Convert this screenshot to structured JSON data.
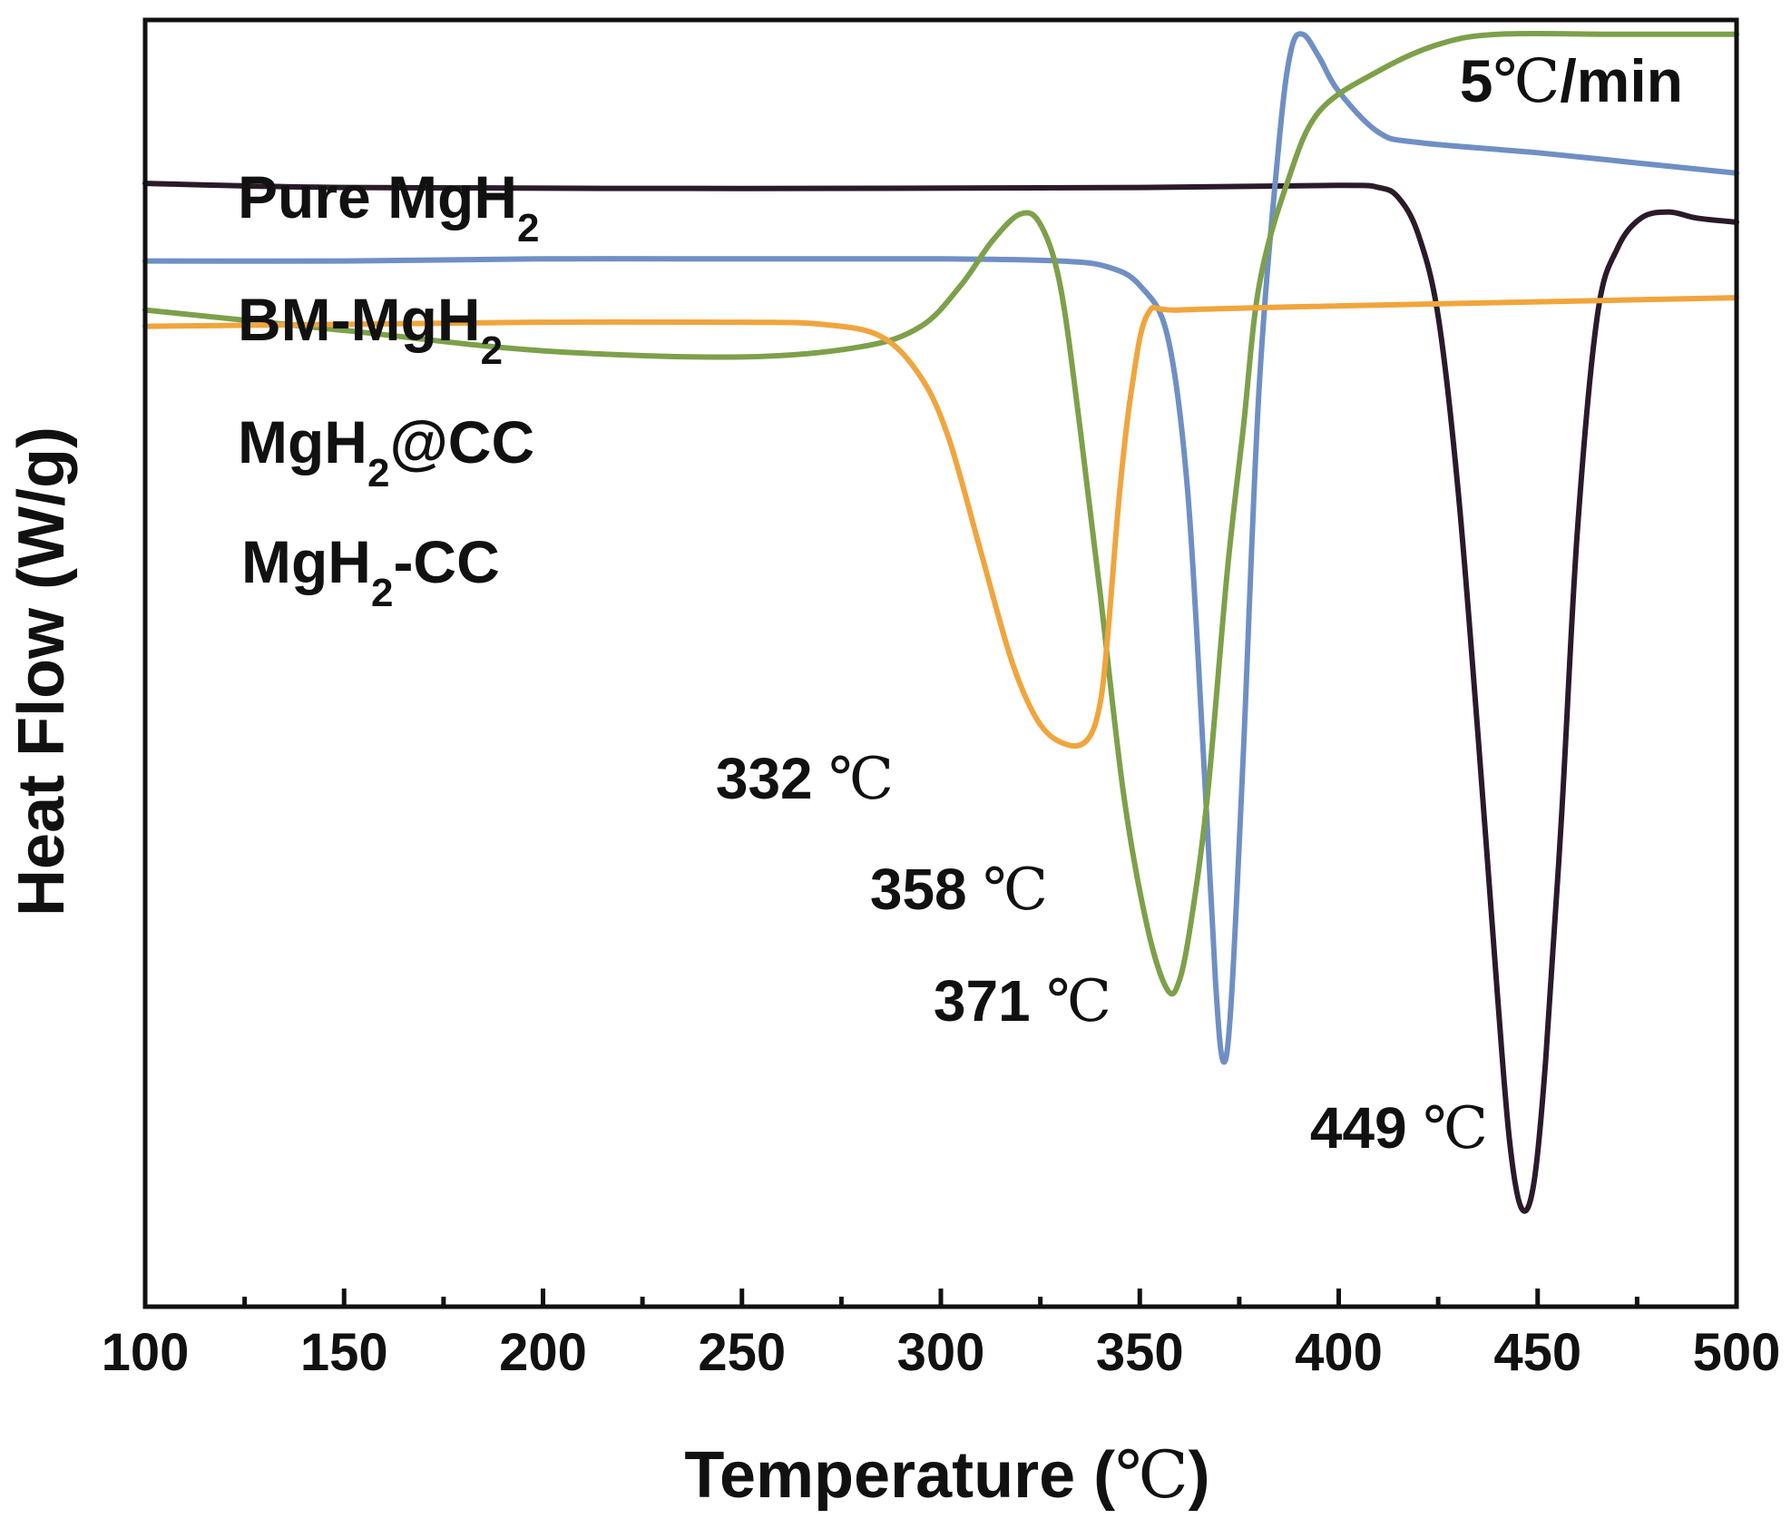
{
  "chart_data": {
    "type": "line",
    "title": "",
    "annotation": "5℃/min",
    "xlabel": "Temperature (℃)",
    "ylabel": "Heat Flow (W/g)",
    "xlim": [
      100,
      500
    ],
    "ylim": [
      -45,
      18
    ],
    "x_ticks": [
      100,
      150,
      200,
      250,
      300,
      350,
      400,
      450,
      500
    ],
    "x_tick_labels": [
      "100",
      "150",
      "200",
      "250",
      "300",
      "350",
      "400",
      "450",
      "500"
    ],
    "y_ticks_shown": false,
    "series": [
      {
        "name": "Pure MgH2",
        "label_main": "Pure MgH",
        "label_sub": "2",
        "label_tail": "",
        "color": "#2a1a2a",
        "peak_label": {
          "value": "449",
          "unit": "℃"
        },
        "points": [
          [
            100,
            10
          ],
          [
            150,
            9.8
          ],
          [
            250,
            9.75
          ],
          [
            350,
            9.8
          ],
          [
            400,
            9.9
          ],
          [
            410,
            9.8
          ],
          [
            415,
            9.3
          ],
          [
            420,
            7.5
          ],
          [
            425,
            3.5
          ],
          [
            430,
            -5
          ],
          [
            435,
            -17
          ],
          [
            440,
            -30
          ],
          [
            443,
            -37
          ],
          [
            446,
            -40.2
          ],
          [
            449,
            -39
          ],
          [
            452,
            -33
          ],
          [
            456,
            -21
          ],
          [
            460,
            -7
          ],
          [
            465,
            3.5
          ],
          [
            470,
            6.8
          ],
          [
            476,
            8.3
          ],
          [
            483,
            8.6
          ],
          [
            490,
            8.3
          ],
          [
            500,
            8.1
          ]
        ]
      },
      {
        "name": "BM-MgH2",
        "label_main": "BM-MgH",
        "label_sub": "2",
        "label_tail": "",
        "color": "#6f8fc4",
        "peak_label": {
          "value": "371",
          "unit": "℃"
        },
        "points": [
          [
            100,
            6.2
          ],
          [
            150,
            6.2
          ],
          [
            200,
            6.3
          ],
          [
            250,
            6.3
          ],
          [
            300,
            6.3
          ],
          [
            330,
            6.2
          ],
          [
            342,
            5.9
          ],
          [
            350,
            5
          ],
          [
            357,
            2.5
          ],
          [
            362,
            -5
          ],
          [
            366,
            -18
          ],
          [
            369,
            -29
          ],
          [
            371,
            -33
          ],
          [
            373,
            -30
          ],
          [
            376,
            -18
          ],
          [
            380,
            0
          ],
          [
            385,
            12
          ],
          [
            388,
            16.5
          ],
          [
            391,
            17.3
          ],
          [
            395,
            16.2
          ],
          [
            400,
            14.5
          ],
          [
            410,
            12.5
          ],
          [
            420,
            12
          ],
          [
            450,
            11.5
          ],
          [
            475,
            11
          ],
          [
            500,
            10.5
          ]
        ]
      },
      {
        "name": "MgH2@CC",
        "label_main": "MgH",
        "label_sub": "2",
        "label_tail": "@CC",
        "color": "#7da04a",
        "peak_label": {
          "value": "358",
          "unit": "℃"
        },
        "points": [
          [
            100,
            3.8
          ],
          [
            150,
            2.8
          ],
          [
            200,
            1.8
          ],
          [
            250,
            1.5
          ],
          [
            280,
            2
          ],
          [
            295,
            3
          ],
          [
            305,
            5
          ],
          [
            313,
            7.2
          ],
          [
            320,
            8.5
          ],
          [
            325,
            8
          ],
          [
            330,
            5
          ],
          [
            335,
            -2
          ],
          [
            340,
            -10
          ],
          [
            346,
            -20
          ],
          [
            352,
            -26.5
          ],
          [
            357,
            -29.5
          ],
          [
            360,
            -29
          ],
          [
            363,
            -26
          ],
          [
            367,
            -20
          ],
          [
            372,
            -9
          ],
          [
            376,
            -2
          ],
          [
            380,
            5
          ],
          [
            387,
            10
          ],
          [
            395,
            13.5
          ],
          [
            410,
            15.5
          ],
          [
            425,
            16.8
          ],
          [
            440,
            17.3
          ],
          [
            470,
            17.3
          ],
          [
            500,
            17.3
          ]
        ]
      },
      {
        "name": "MgH2-CC",
        "label_main": "MgH",
        "label_sub": "2",
        "label_tail": "-CC",
        "color": "#f0a53d",
        "peak_label": {
          "value": "332",
          "unit": "℃"
        },
        "points": [
          [
            100,
            3
          ],
          [
            150,
            3.1
          ],
          [
            200,
            3.2
          ],
          [
            250,
            3.2
          ],
          [
            270,
            3.1
          ],
          [
            285,
            2.5
          ],
          [
            295,
            0.5
          ],
          [
            302,
            -2.5
          ],
          [
            310,
            -8
          ],
          [
            318,
            -13.5
          ],
          [
            325,
            -16.5
          ],
          [
            332,
            -17.5
          ],
          [
            337,
            -17.2
          ],
          [
            340,
            -15.5
          ],
          [
            342,
            -12
          ],
          [
            345,
            -5
          ],
          [
            348,
            0
          ],
          [
            352,
            3.6
          ],
          [
            360,
            3.8
          ],
          [
            400,
            4
          ],
          [
            450,
            4.2
          ],
          [
            500,
            4.4
          ]
        ]
      }
    ]
  }
}
